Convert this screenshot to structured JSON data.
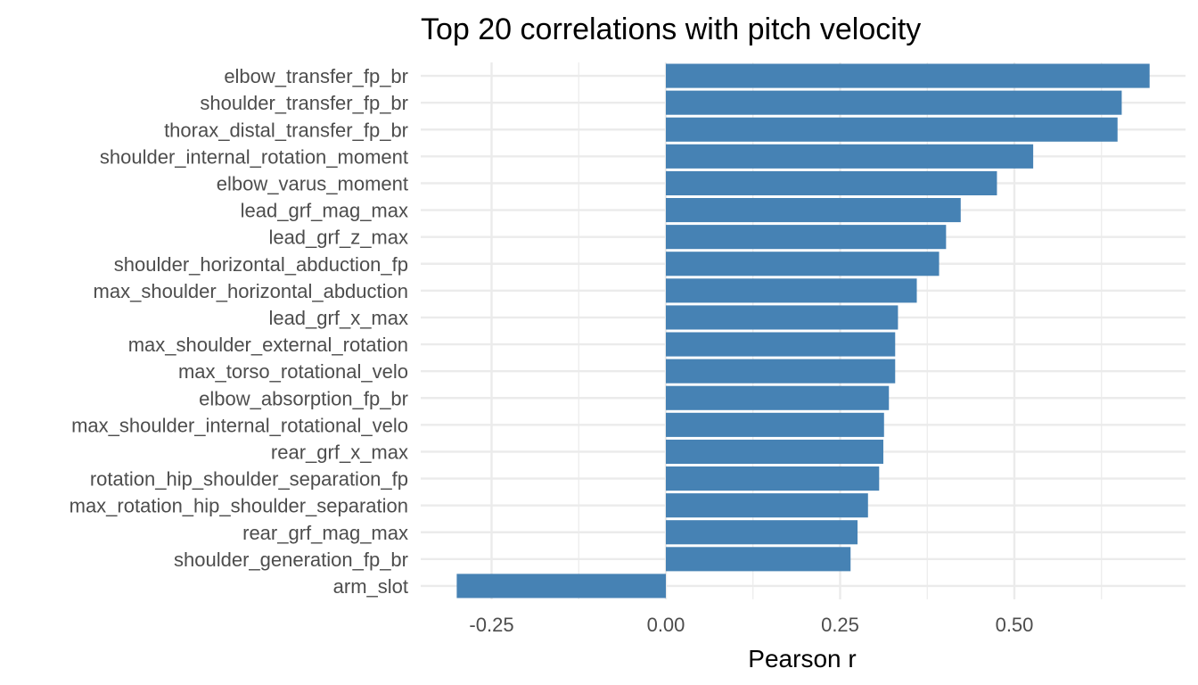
{
  "chart_data": {
    "type": "bar",
    "orientation": "horizontal",
    "title": "Top 20 correlations with pitch velocity",
    "xlabel": "Pearson r",
    "ylabel": "",
    "bar_color": "#4682b4",
    "grid": true,
    "legend": "none",
    "xlim": [
      -0.3,
      0.72
    ],
    "xticks": [
      -0.25,
      0.0,
      0.25,
      0.5
    ],
    "xtick_labels": [
      "-0.25",
      "0.00",
      "0.25",
      "0.50"
    ],
    "categories": [
      "elbow_transfer_fp_br",
      "shoulder_transfer_fp_br",
      "thorax_distal_transfer_fp_br",
      "shoulder_internal_rotation_moment",
      "elbow_varus_moment",
      "lead_grf_mag_max",
      "lead_grf_z_max",
      "shoulder_horizontal_abduction_fp",
      "max_shoulder_horizontal_abduction",
      "lead_grf_x_max",
      "max_shoulder_external_rotation",
      "max_torso_rotational_velo",
      "elbow_absorption_fp_br",
      "max_shoulder_internal_rotational_velo",
      "rear_grf_x_max",
      "rotation_hip_shoulder_separation_fp",
      "max_rotation_hip_shoulder_separation",
      "rear_grf_mag_max",
      "shoulder_generation_fp_br",
      "arm_slot"
    ],
    "values": [
      0.694,
      0.654,
      0.648,
      0.527,
      0.475,
      0.423,
      0.402,
      0.392,
      0.36,
      0.333,
      0.329,
      0.329,
      0.32,
      0.313,
      0.312,
      0.306,
      0.29,
      0.275,
      0.265,
      -0.3
    ]
  }
}
